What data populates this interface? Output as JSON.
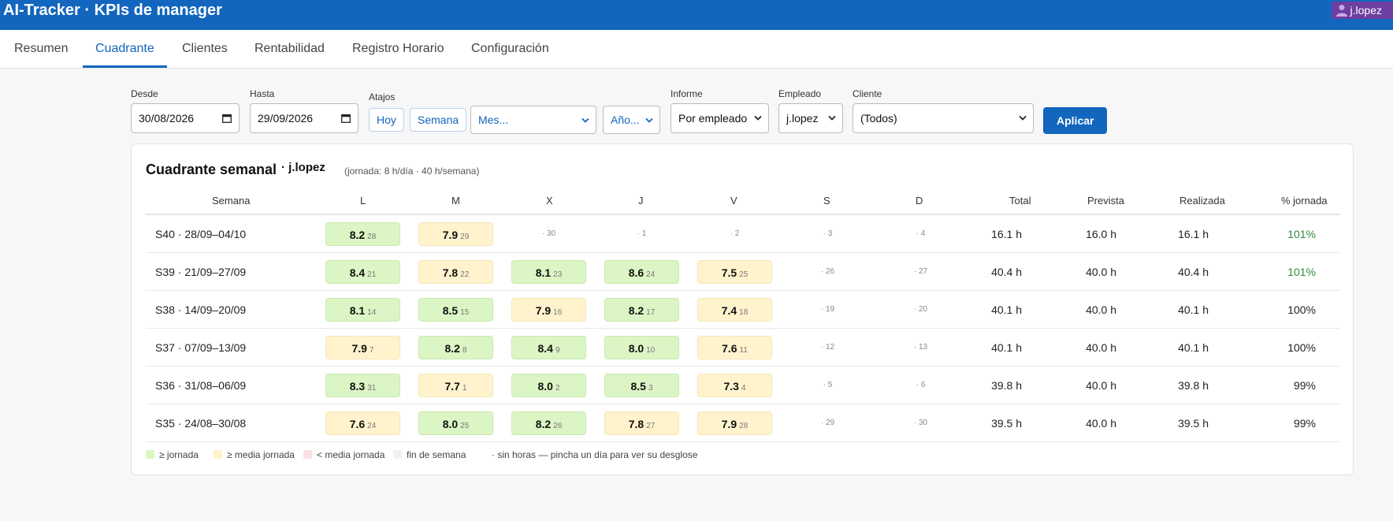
{
  "header": {
    "title": "AI-Tracker · KPIs de manager",
    "user": "j.lopez",
    "brand_color": "#1266be",
    "user_chip_color": "#6c3fa0"
  },
  "tabs": [
    {
      "label": "Resumen",
      "active": false
    },
    {
      "label": "Cuadrante",
      "active": true
    },
    {
      "label": "Clientes",
      "active": false
    },
    {
      "label": "Rentabilidad",
      "active": false
    },
    {
      "label": "Registro Horario",
      "active": false
    },
    {
      "label": "Configuración",
      "active": false
    }
  ],
  "filters": {
    "desde_label": "Desde",
    "desde_value": "30/08/2026",
    "hasta_label": "Hasta",
    "hasta_value": "29/09/2026",
    "atajos_label": "Atajos",
    "hoy": "Hoy",
    "semana": "Semana",
    "mes": "Mes...",
    "ano": "Año...",
    "informe_label": "Informe",
    "informe_value": "Por empleado",
    "empleado_label": "Empleado",
    "empleado_value": "j.lopez",
    "cliente_label": "Cliente",
    "cliente_value": "(Todos)",
    "apply": "Aplicar"
  },
  "card": {
    "title": "Cuadrante semanal",
    "user": "· j.lopez",
    "jornada": "(jornada: 8 h/día · 40 h/semana)",
    "columns": [
      "Semana",
      "L",
      "M",
      "X",
      "J",
      "V",
      "S",
      "D",
      "Total",
      "Prevista",
      "Realizada",
      "% jornada"
    ],
    "rows": [
      {
        "week": "S40 · 28/09–04/10",
        "days": [
          {
            "v": "8.2",
            "d": "28",
            "s": "green"
          },
          {
            "v": "7.9",
            "d": "29",
            "s": "yellow"
          },
          {
            "v": null,
            "d": "30"
          },
          {
            "v": null,
            "d": "1"
          },
          {
            "v": null,
            "d": "2"
          },
          {
            "v": null,
            "d": "3"
          },
          {
            "v": null,
            "d": "4"
          }
        ],
        "total": "16.1 h",
        "prevista": "16.0 h",
        "realizada": "16.1 h",
        "pct": "101%",
        "pct_color": "#2e8b3a"
      },
      {
        "week": "S39 · 21/09–27/09",
        "days": [
          {
            "v": "8.4",
            "d": "21",
            "s": "green"
          },
          {
            "v": "7.8",
            "d": "22",
            "s": "yellow"
          },
          {
            "v": "8.1",
            "d": "23",
            "s": "green"
          },
          {
            "v": "8.6",
            "d": "24",
            "s": "green"
          },
          {
            "v": "7.5",
            "d": "25",
            "s": "yellow"
          },
          {
            "v": null,
            "d": "26"
          },
          {
            "v": null,
            "d": "27"
          }
        ],
        "total": "40.4 h",
        "prevista": "40.0 h",
        "realizada": "40.4 h",
        "pct": "101%",
        "pct_color": "#2e8b3a"
      },
      {
        "week": "S38 · 14/09–20/09",
        "days": [
          {
            "v": "8.1",
            "d": "14",
            "s": "green"
          },
          {
            "v": "8.5",
            "d": "15",
            "s": "green"
          },
          {
            "v": "7.9",
            "d": "16",
            "s": "yellow"
          },
          {
            "v": "8.2",
            "d": "17",
            "s": "green"
          },
          {
            "v": "7.4",
            "d": "18",
            "s": "yellow"
          },
          {
            "v": null,
            "d": "19"
          },
          {
            "v": null,
            "d": "20"
          }
        ],
        "total": "40.1 h",
        "prevista": "40.0 h",
        "realizada": "40.1 h",
        "pct": "100%",
        "pct_color": "#222222"
      },
      {
        "week": "S37 · 07/09–13/09",
        "days": [
          {
            "v": "7.9",
            "d": "7",
            "s": "yellow"
          },
          {
            "v": "8.2",
            "d": "8",
            "s": "green"
          },
          {
            "v": "8.4",
            "d": "9",
            "s": "green"
          },
          {
            "v": "8.0",
            "d": "10",
            "s": "green"
          },
          {
            "v": "7.6",
            "d": "11",
            "s": "yellow"
          },
          {
            "v": null,
            "d": "12"
          },
          {
            "v": null,
            "d": "13"
          }
        ],
        "total": "40.1 h",
        "prevista": "40.0 h",
        "realizada": "40.1 h",
        "pct": "100%",
        "pct_color": "#222222"
      },
      {
        "week": "S36 · 31/08–06/09",
        "days": [
          {
            "v": "8.3",
            "d": "31",
            "s": "green"
          },
          {
            "v": "7.7",
            "d": "1",
            "s": "yellow"
          },
          {
            "v": "8.0",
            "d": "2",
            "s": "green"
          },
          {
            "v": "8.5",
            "d": "3",
            "s": "green"
          },
          {
            "v": "7.3",
            "d": "4",
            "s": "yellow"
          },
          {
            "v": null,
            "d": "5"
          },
          {
            "v": null,
            "d": "6"
          }
        ],
        "total": "39.8 h",
        "prevista": "40.0 h",
        "realizada": "39.8 h",
        "pct": "99%",
        "pct_color": "#222222"
      },
      {
        "week": "S35 · 24/08–30/08",
        "days": [
          {
            "v": "7.6",
            "d": "24",
            "s": "yellow"
          },
          {
            "v": "8.0",
            "d": "25",
            "s": "green"
          },
          {
            "v": "8.2",
            "d": "26",
            "s": "green"
          },
          {
            "v": "7.8",
            "d": "27",
            "s": "yellow"
          },
          {
            "v": "7.9",
            "d": "28",
            "s": "yellow"
          },
          {
            "v": null,
            "d": "29"
          },
          {
            "v": null,
            "d": "30"
          }
        ],
        "total": "39.5 h",
        "prevista": "40.0 h",
        "realizada": "39.5 h",
        "pct": "99%",
        "pct_color": "#222222"
      }
    ],
    "legend": [
      {
        "label": "≥ jornada",
        "color": "#dcf5c5"
      },
      {
        "label": "≥ media jornada",
        "color": "#fff3cd"
      },
      {
        "label": "< media jornada",
        "color": "#fde0e4"
      },
      {
        "label": "fin de semana",
        "color": "#f1f1f1"
      },
      {
        "label": "· sin horas — pincha un día para ver su desglose",
        "color": null
      }
    ]
  }
}
